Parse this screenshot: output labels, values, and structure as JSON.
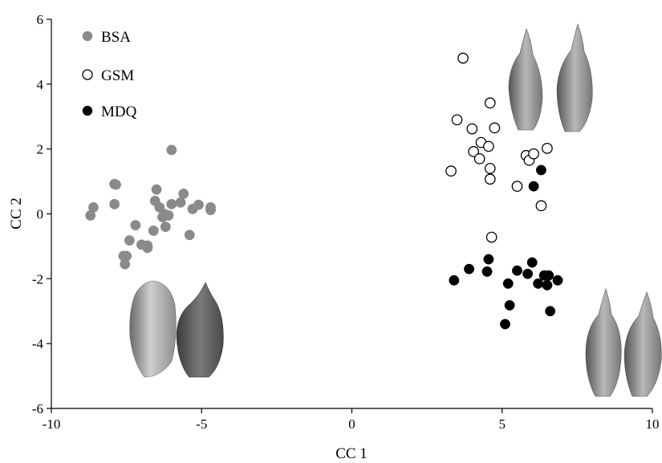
{
  "chart_data": {
    "type": "scatter",
    "title": "",
    "xlabel": "CC 1",
    "ylabel": "CC 2",
    "xlim": [
      -10,
      10
    ],
    "ylim": [
      -6,
      6
    ],
    "xticks": [
      -10,
      -5,
      0,
      5,
      10
    ],
    "yticks": [
      -6,
      -4,
      -2,
      0,
      2,
      4,
      6
    ],
    "grid": false,
    "legend_position": "top-left",
    "series": [
      {
        "name": "BSA",
        "marker": "filled-circle",
        "color": "#8a8a8a",
        "points": [
          [
            -8.7,
            -0.05
          ],
          [
            -8.6,
            0.2
          ],
          [
            -7.9,
            0.92
          ],
          [
            -7.85,
            0.9
          ],
          [
            -7.9,
            0.3
          ],
          [
            -7.6,
            -1.3
          ],
          [
            -7.5,
            -1.3
          ],
          [
            -7.55,
            -1.55
          ],
          [
            -7.4,
            -0.82
          ],
          [
            -7.2,
            -0.35
          ],
          [
            -7.0,
            -0.95
          ],
          [
            -6.8,
            -0.98
          ],
          [
            -6.8,
            -1.05
          ],
          [
            -6.6,
            -0.52
          ],
          [
            -6.55,
            0.4
          ],
          [
            -6.5,
            0.75
          ],
          [
            -6.4,
            0.2
          ],
          [
            -6.3,
            -0.1
          ],
          [
            -6.2,
            -0.4
          ],
          [
            -6.25,
            0.0
          ],
          [
            -6.1,
            -0.05
          ],
          [
            -6.0,
            0.3
          ],
          [
            -6.0,
            1.97
          ],
          [
            -5.7,
            0.35
          ],
          [
            -5.6,
            0.62
          ],
          [
            -5.4,
            -0.65
          ],
          [
            -5.3,
            0.15
          ],
          [
            -5.1,
            0.28
          ],
          [
            -4.7,
            0.2
          ],
          [
            -4.7,
            0.12
          ]
        ]
      },
      {
        "name": "GSM",
        "marker": "open-circle",
        "color": "#000000",
        "points": [
          [
            3.7,
            4.8
          ],
          [
            3.5,
            2.9
          ],
          [
            4.6,
            3.42
          ],
          [
            4.0,
            2.62
          ],
          [
            4.75,
            2.65
          ],
          [
            4.3,
            2.2
          ],
          [
            4.55,
            2.08
          ],
          [
            4.05,
            1.92
          ],
          [
            4.25,
            1.7
          ],
          [
            3.3,
            1.32
          ],
          [
            4.6,
            1.4
          ],
          [
            4.6,
            1.07
          ],
          [
            5.8,
            1.8
          ],
          [
            5.9,
            1.65
          ],
          [
            6.05,
            1.85
          ],
          [
            6.5,
            2.02
          ],
          [
            5.5,
            0.85
          ],
          [
            6.3,
            0.25
          ],
          [
            4.65,
            -0.72
          ]
        ]
      },
      {
        "name": "MDQ",
        "marker": "filled-circle",
        "color": "#000000",
        "points": [
          [
            6.3,
            1.35
          ],
          [
            6.05,
            0.85
          ],
          [
            3.4,
            -2.05
          ],
          [
            3.9,
            -1.7
          ],
          [
            4.5,
            -1.78
          ],
          [
            4.55,
            -1.4
          ],
          [
            5.2,
            -2.15
          ],
          [
            5.5,
            -1.75
          ],
          [
            5.85,
            -1.85
          ],
          [
            6.0,
            -1.5
          ],
          [
            6.2,
            -2.15
          ],
          [
            6.4,
            -1.9
          ],
          [
            6.5,
            -2.2
          ],
          [
            6.55,
            -1.9
          ],
          [
            6.85,
            -2.05
          ],
          [
            5.25,
            -2.82
          ],
          [
            6.6,
            -3.0
          ],
          [
            5.1,
            -3.4
          ]
        ]
      }
    ]
  }
}
